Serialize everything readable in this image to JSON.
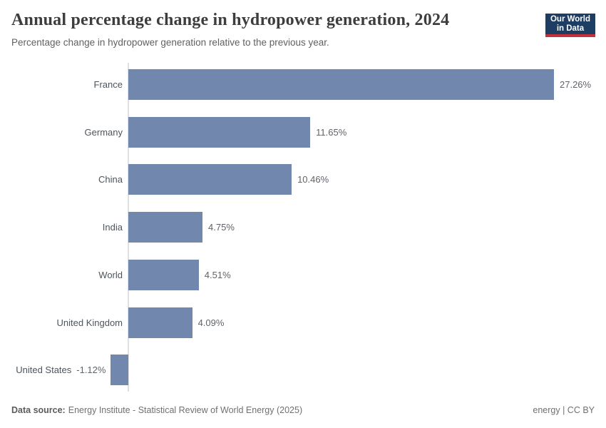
{
  "header": {
    "title": "Annual percentage change in hydropower generation, 2024",
    "subtitle": "Percentage change in hydropower generation relative to the previous year.",
    "logo": {
      "line1": "Our World",
      "line2": "in Data",
      "bg_color": "#1d3d63",
      "accent_color": "#c4303c"
    }
  },
  "chart_data": {
    "type": "bar",
    "orientation": "horizontal",
    "title": "Annual percentage change in hydropower generation, 2024",
    "subtitle": "Percentage change in hydropower generation relative to the previous year.",
    "categories": [
      "France",
      "Germany",
      "China",
      "India",
      "World",
      "United Kingdom",
      "United States"
    ],
    "values": [
      27.26,
      11.65,
      10.46,
      4.75,
      4.51,
      4.09,
      -1.12
    ],
    "value_labels": [
      "27.26%",
      "11.65%",
      "10.46%",
      "4.75%",
      "4.51%",
      "4.09%",
      "-1.12%"
    ],
    "xlabel": "",
    "ylabel": "",
    "xlim": [
      -1.12,
      27.26
    ],
    "grid": false,
    "legend": false,
    "bar_color": "#7287ae",
    "axis_color": "#e0e0e0"
  },
  "footer": {
    "source_label": "Data source:",
    "source_text": "Energy Institute - Statistical Review of World Energy (2025)",
    "license": "energy | CC BY"
  }
}
